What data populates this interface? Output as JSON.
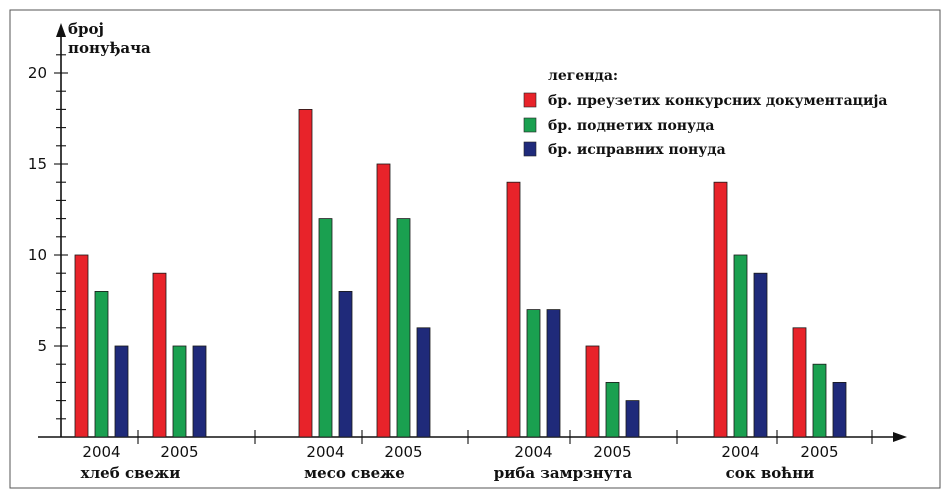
{
  "chart_data": {
    "type": "bar",
    "ylabel_line1": "број",
    "ylabel_line2": "понуђача",
    "yticks": [
      5,
      10,
      15,
      20
    ],
    "ylim": [
      0,
      21
    ],
    "legend_title": "легенда:",
    "legend_position": "top-right",
    "series": [
      {
        "name": "бр. преузетих конкурсних документација",
        "color": "#e8232a"
      },
      {
        "name": "бр. поднетих понуда",
        "color": "#1aa050"
      },
      {
        "name": "бр. исправних понуда",
        "color": "#1f2a7a"
      }
    ],
    "groups": [
      {
        "label": "хлеб свежи",
        "years": [
          {
            "year": "2004",
            "values": [
              10,
              8,
              5
            ]
          },
          {
            "year": "2005",
            "values": [
              9,
              5,
              5
            ]
          }
        ]
      },
      {
        "label": "месо свеже",
        "years": [
          {
            "year": "2004",
            "values": [
              18,
              12,
              8
            ]
          },
          {
            "year": "2005",
            "values": [
              15,
              12,
              6
            ]
          }
        ]
      },
      {
        "label": "риба замрзнута",
        "years": [
          {
            "year": "2004",
            "values": [
              14,
              7,
              7
            ]
          },
          {
            "year": "2005",
            "values": [
              5,
              3,
              2
            ]
          }
        ]
      },
      {
        "label": "сок воћни",
        "years": [
          {
            "year": "2004",
            "values": [
              14,
              10,
              9
            ]
          },
          {
            "year": "2005",
            "values": [
              6,
              4,
              3
            ]
          }
        ]
      }
    ]
  }
}
